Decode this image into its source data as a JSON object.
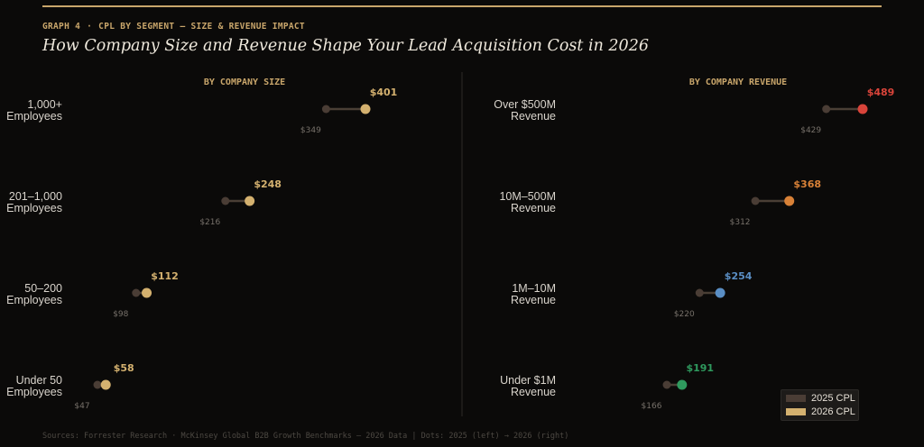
{
  "header": {
    "graph_label": "GRAPH 4",
    "separator": "·",
    "subtitle": "CPL BY SEGMENT — SIZE & REVENUE IMPACT",
    "title": "How Company Size and Revenue Shape Your Lead Acquisition Cost in 2026"
  },
  "footer": {
    "text": "Sources: Forrester Research · McKinsey Global B2B Growth Benchmarks — 2026 Data  |  Dots: 2025 (left) → 2026 (right)"
  },
  "legend": {
    "items": [
      {
        "label": "2025 CPL",
        "color": "#4a3d35"
      },
      {
        "label": "2026 CPL",
        "color": "#d4b16f"
      }
    ]
  },
  "colors": {
    "accent": "#c9a66b",
    "dot_2025": "#4a3d35",
    "connector": "#4a3f35",
    "value_2025": "#77716a",
    "category_label": "#d9d4cc",
    "divider": "#2d2b28"
  },
  "chart_data": [
    {
      "type": "dumbbell",
      "title": "BY COMPANY SIZE",
      "categories": [
        "1,000+\nEmployees",
        "201–1,000\nEmployees",
        "50–200\nEmployees",
        "Under 50\nEmployees"
      ],
      "series": [
        {
          "name": "2025 CPL",
          "values": [
            349,
            216,
            98,
            47
          ],
          "labels": [
            "$349",
            "$216",
            "$98",
            "$47"
          ]
        },
        {
          "name": "2026 CPL",
          "values": [
            401,
            248,
            112,
            58
          ],
          "labels": [
            "$401",
            "$248",
            "$112",
            "$58"
          ]
        }
      ],
      "colors_2026": [
        "#d4b16f",
        "#d4b16f",
        "#d4b16f",
        "#d4b16f"
      ]
    },
    {
      "type": "dumbbell",
      "title": "BY COMPANY REVENUE",
      "categories": [
        "Over $500M\nRevenue",
        "10M–500M\nRevenue",
        "1M–10M\nRevenue",
        "Under $1M\nRevenue"
      ],
      "series": [
        {
          "name": "2025 CPL",
          "values": [
            429,
            312,
            220,
            166
          ],
          "labels": [
            "$429",
            "$312",
            "$220",
            "$166"
          ]
        },
        {
          "name": "2026 CPL",
          "values": [
            489,
            368,
            254,
            191
          ],
          "labels": [
            "$489",
            "$368",
            "$254",
            "$191"
          ]
        }
      ],
      "colors_2026": [
        "#d9443a",
        "#d88137",
        "#5a8ec4",
        "#2f9a5e"
      ]
    }
  ]
}
